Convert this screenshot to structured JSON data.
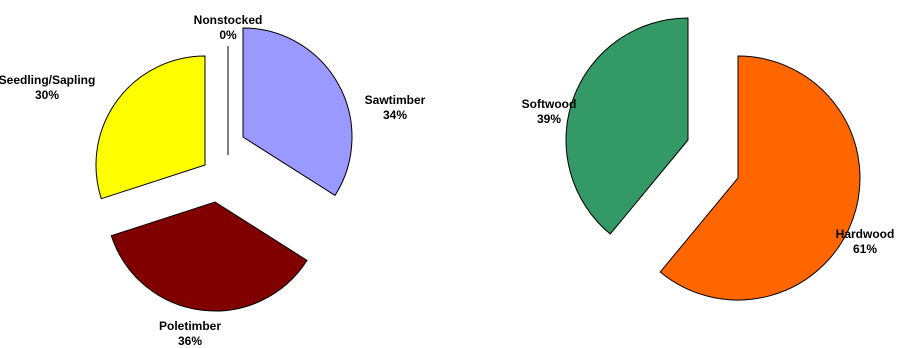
{
  "chart_data": [
    {
      "type": "pie",
      "title": "",
      "slices": [
        {
          "label": "Sawtimber",
          "value": 34,
          "display": "34%",
          "color": "#9999ff"
        },
        {
          "label": "Poletimber",
          "value": 36,
          "display": "36%",
          "color": "#800000"
        },
        {
          "label": "Seedling/Sapling",
          "value": 30,
          "display": "30%",
          "color": "#ffff00"
        },
        {
          "label": "Nonstocked",
          "value": 0,
          "display": "0%",
          "color": "#ffffff"
        }
      ],
      "exploded": true
    },
    {
      "type": "pie",
      "title": "",
      "slices": [
        {
          "label": "Hardwood",
          "value": 61,
          "display": "61%",
          "color": "#ff6600"
        },
        {
          "label": "Softwood",
          "value": 39,
          "display": "39%",
          "color": "#339966"
        }
      ],
      "exploded": true
    }
  ]
}
